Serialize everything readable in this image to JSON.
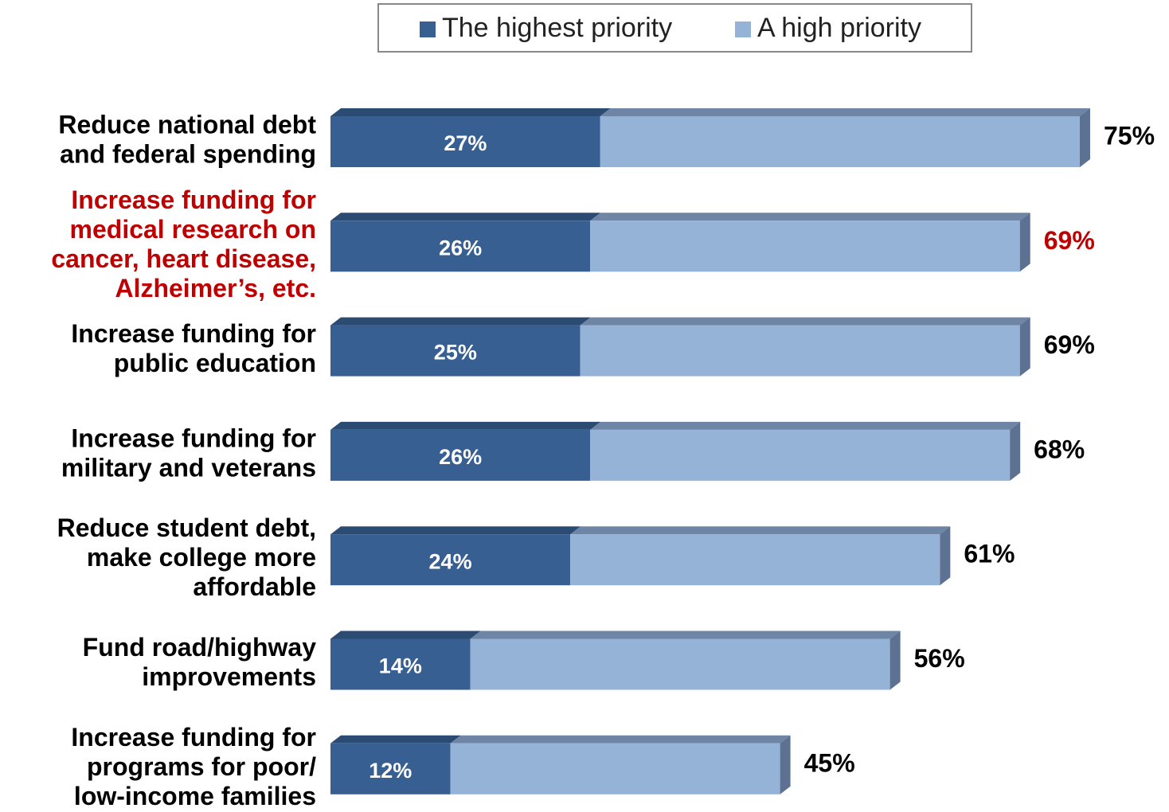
{
  "chart_data": {
    "type": "stacked-bar-3d",
    "orientation": "horizontal",
    "categories": [
      [
        "Reduce national debt",
        "and federal spending"
      ],
      [
        "Increase funding for",
        "medical research on",
        "cancer, heart disease,",
        "Alzheimer’s, etc."
      ],
      [
        "Increase funding for",
        "public education"
      ],
      [
        "Increase funding for",
        "military and veterans"
      ],
      [
        "Reduce student debt,",
        "make college more",
        "affordable"
      ],
      [
        "Fund road/highway",
        "improvements"
      ],
      [
        "Increase funding for",
        "programs for poor/",
        "low-income families"
      ]
    ],
    "series": [
      {
        "name": "The highest priority",
        "color": "#375f91",
        "top_color": "#2c4b73",
        "values": [
          27,
          26,
          25,
          26,
          24,
          14,
          12
        ],
        "value_labels": [
          "27%",
          "26%",
          "25%",
          "26%",
          "24%",
          "14%",
          "12%"
        ]
      },
      {
        "name": "A high priority",
        "color": "#95b3d7",
        "top_color": "#6f85a5",
        "values": [
          48,
          43,
          44,
          42,
          37,
          42,
          33
        ]
      }
    ],
    "totals": [
      75,
      69,
      69,
      68,
      61,
      56,
      45
    ],
    "total_labels": [
      "75%",
      "69%",
      "69%",
      "68%",
      "61%",
      "56%",
      "45%"
    ],
    "side_color": "#5d7192",
    "highlight": 1,
    "highlight_color": "#c00000",
    "legend": "top"
  }
}
